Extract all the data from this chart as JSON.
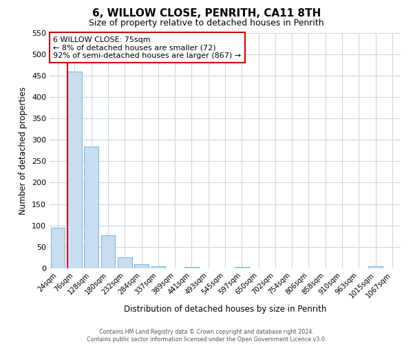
{
  "title": "6, WILLOW CLOSE, PENRITH, CA11 8TH",
  "subtitle": "Size of property relative to detached houses in Penrith",
  "xlabel": "Distribution of detached houses by size in Penrith",
  "ylabel": "Number of detached properties",
  "bin_labels": [
    "24sqm",
    "76sqm",
    "128sqm",
    "180sqm",
    "232sqm",
    "284sqm",
    "337sqm",
    "389sqm",
    "441sqm",
    "493sqm",
    "545sqm",
    "597sqm",
    "650sqm",
    "702sqm",
    "754sqm",
    "806sqm",
    "858sqm",
    "910sqm",
    "963sqm",
    "1015sqm",
    "1067sqm"
  ],
  "bar_values": [
    95,
    460,
    285,
    77,
    25,
    9,
    5,
    0,
    3,
    0,
    0,
    4,
    0,
    0,
    0,
    0,
    0,
    0,
    0,
    5,
    0
  ],
  "bar_color": "#c8ddf0",
  "bar_edge_color": "#7ab4d8",
  "marker_color": "#cc0000",
  "ylim": [
    0,
    550
  ],
  "yticks": [
    0,
    50,
    100,
    150,
    200,
    250,
    300,
    350,
    400,
    450,
    500,
    550
  ],
  "annotation_title": "6 WILLOW CLOSE: 75sqm",
  "annotation_line1": "← 8% of detached houses are smaller (72)",
  "annotation_line2": "92% of semi-detached houses are larger (867) →",
  "annotation_box_color": "#ffffff",
  "annotation_border_color": "#cc0000",
  "footer_line1": "Contains HM Land Registry data © Crown copyright and database right 2024.",
  "footer_line2": "Contains public sector information licensed under the Open Government Licence v3.0.",
  "background_color": "#ffffff",
  "grid_color": "#c8d8e8",
  "title_fontsize": 11,
  "subtitle_fontsize": 9
}
